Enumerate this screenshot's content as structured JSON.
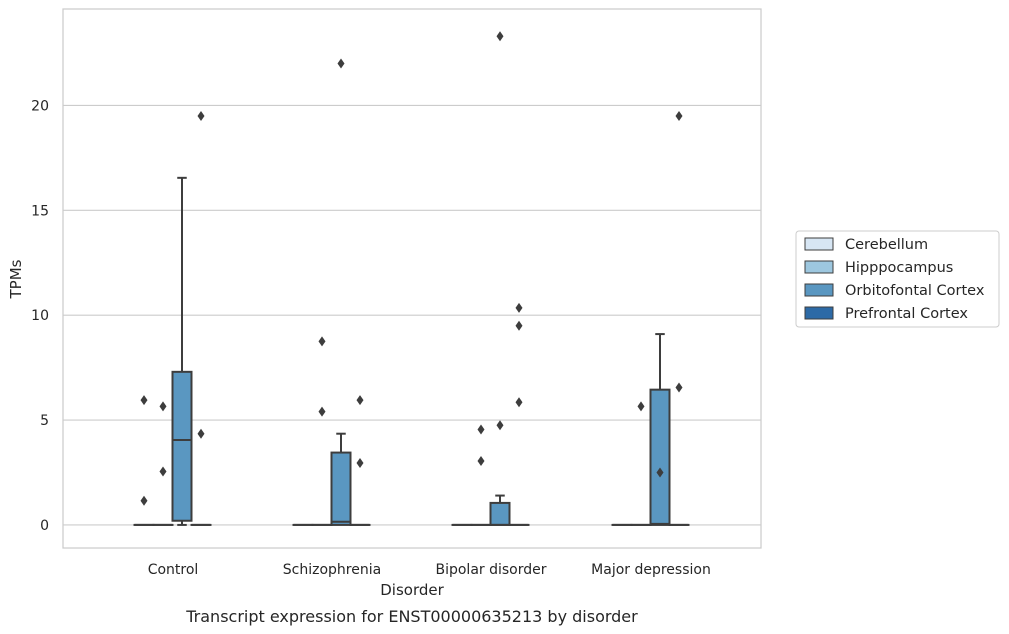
{
  "caption": "Transcript expression for ENST00000635213 by disorder",
  "chart_data": {
    "type": "box",
    "xlabel": "Disorder",
    "ylabel": "TPMs",
    "ylim": [
      -1.1,
      24.6
    ],
    "yticks": [
      0,
      5,
      10,
      15,
      20
    ],
    "grid": "horizontal",
    "legend_position": "right",
    "categories": [
      "Control",
      "Schizophrenia",
      "Bipolar disorder",
      "Major depression"
    ],
    "series": [
      {
        "name": "Cerebellum",
        "color": "#d7e6f4",
        "boxes": [
          {
            "q1": 0,
            "median": 0,
            "q3": 0,
            "whisker_low": 0,
            "whisker_high": 0,
            "outliers": [
              5.95,
              1.15
            ]
          },
          {
            "q1": 0,
            "median": 0,
            "q3": 0,
            "whisker_low": 0,
            "whisker_high": 0,
            "outliers": []
          },
          {
            "q1": 0,
            "median": 0,
            "q3": 0,
            "whisker_low": 0,
            "whisker_high": 0,
            "outliers": []
          },
          {
            "q1": 0,
            "median": 0,
            "q3": 0,
            "whisker_low": 0,
            "whisker_high": 0,
            "outliers": []
          }
        ]
      },
      {
        "name": "Hipppocampus",
        "color": "#9dc7df",
        "boxes": [
          {
            "q1": 0,
            "median": 0,
            "q3": 0,
            "whisker_low": 0,
            "whisker_high": 0,
            "outliers": [
              5.65,
              2.55
            ]
          },
          {
            "q1": 0,
            "median": 0,
            "q3": 0,
            "whisker_low": 0,
            "whisker_high": 0,
            "outliers": [
              8.75,
              5.4
            ]
          },
          {
            "q1": 0,
            "median": 0,
            "q3": 0,
            "whisker_low": 0,
            "whisker_high": 0,
            "outliers": [
              4.55,
              3.05
            ]
          },
          {
            "q1": 0,
            "median": 0,
            "q3": 0,
            "whisker_low": 0,
            "whisker_high": 0,
            "outliers": [
              5.65
            ]
          }
        ]
      },
      {
        "name": "Orbitofontal Cortex",
        "color": "#5a97c1",
        "boxes": [
          {
            "q1": 0.2,
            "median": 4.05,
            "q3": 7.3,
            "whisker_low": 0,
            "whisker_high": 16.55,
            "outliers": []
          },
          {
            "q1": 0,
            "median": 0.15,
            "q3": 3.45,
            "whisker_low": 0,
            "whisker_high": 4.35,
            "outliers": [
              22.0
            ]
          },
          {
            "q1": 0,
            "median": 0,
            "q3": 1.05,
            "whisker_low": 0,
            "whisker_high": 1.4,
            "outliers": [
              23.3,
              4.75
            ]
          },
          {
            "q1": 0,
            "median": 0.05,
            "q3": 6.45,
            "whisker_low": 0,
            "whisker_high": 9.1,
            "outliers": [
              2.5
            ]
          }
        ]
      },
      {
        "name": "Prefrontal Cortex",
        "color": "#2d6aa6",
        "boxes": [
          {
            "q1": 0,
            "median": 0,
            "q3": 0,
            "whisker_low": 0,
            "whisker_high": 0,
            "outliers": [
              19.5,
              4.35
            ]
          },
          {
            "q1": 0,
            "median": 0,
            "q3": 0,
            "whisker_low": 0,
            "whisker_high": 0,
            "outliers": [
              5.95,
              2.95
            ]
          },
          {
            "q1": 0,
            "median": 0,
            "q3": 0,
            "whisker_low": 0,
            "whisker_high": 0,
            "outliers": [
              10.35,
              9.5,
              5.85
            ]
          },
          {
            "q1": 0,
            "median": 0,
            "q3": 0,
            "whisker_low": 0,
            "whisker_high": 0,
            "outliers": [
              19.5,
              6.55
            ]
          }
        ]
      }
    ]
  }
}
